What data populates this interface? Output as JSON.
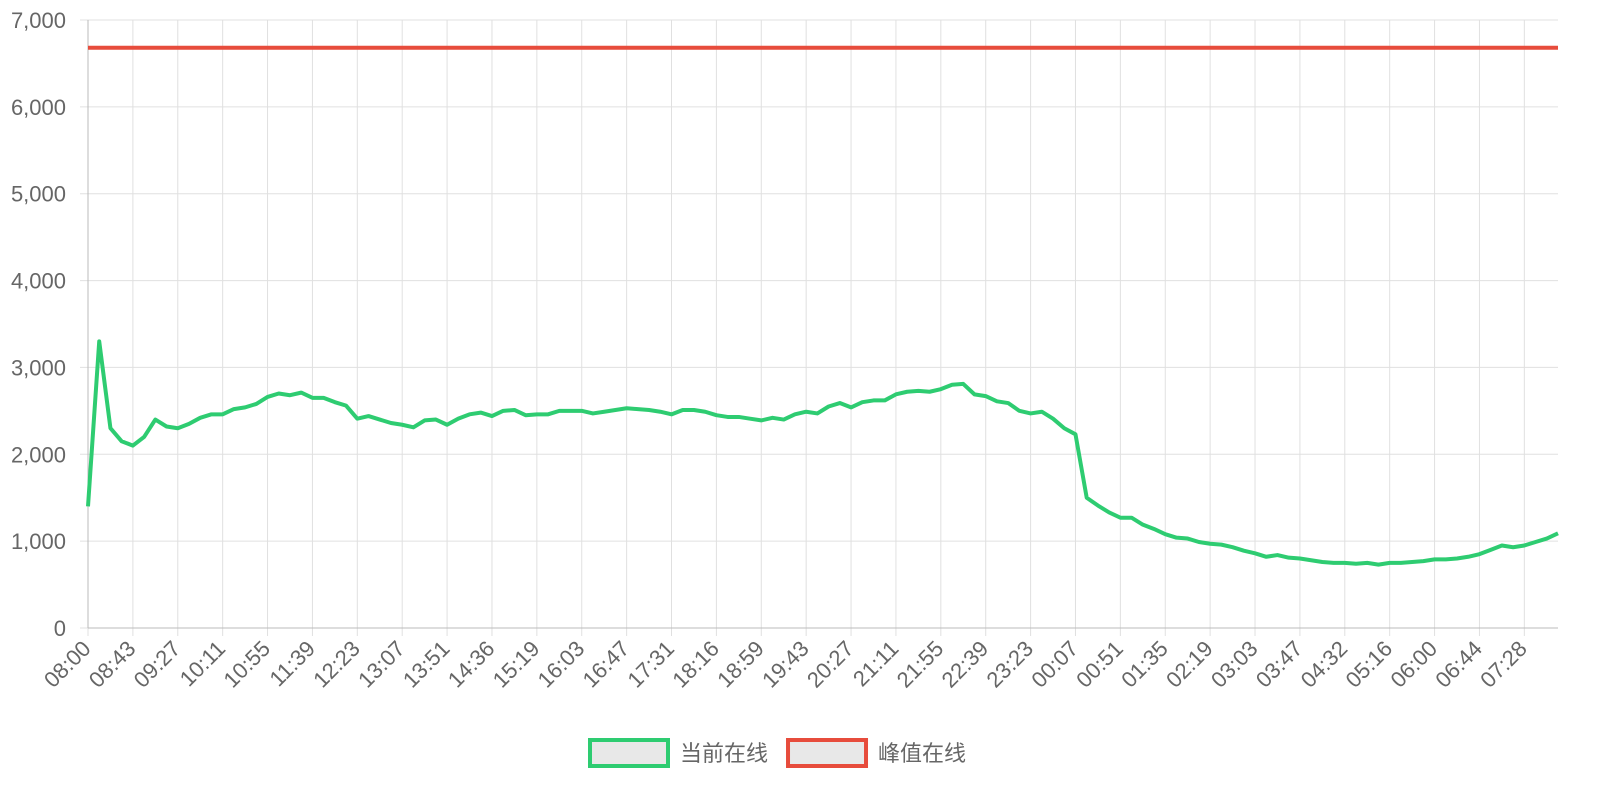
{
  "chart_data": {
    "type": "line",
    "categories": [
      "08:00",
      null,
      null,
      null,
      "08:43",
      null,
      null,
      null,
      "09:27",
      null,
      null,
      null,
      "10:11",
      null,
      null,
      null,
      "10:55",
      null,
      null,
      null,
      "11:39",
      null,
      null,
      null,
      "12:23",
      null,
      null,
      null,
      "13:07",
      null,
      null,
      null,
      "13:51",
      null,
      null,
      null,
      "14:36",
      null,
      null,
      null,
      "15:19",
      null,
      null,
      null,
      "16:03",
      null,
      null,
      null,
      "16:47",
      null,
      null,
      null,
      "17:31",
      null,
      null,
      null,
      "18:16",
      null,
      null,
      null,
      "18:59",
      null,
      null,
      null,
      "19:43",
      null,
      null,
      null,
      "20:27",
      null,
      null,
      null,
      "21:11",
      null,
      null,
      null,
      "21:55",
      null,
      null,
      null,
      "22:39",
      null,
      null,
      null,
      "23:23",
      null,
      null,
      null,
      "00:07",
      null,
      null,
      null,
      "00:51",
      null,
      null,
      null,
      "01:35",
      null,
      null,
      null,
      "02:19",
      null,
      null,
      null,
      "03:03",
      null,
      null,
      null,
      "03:47",
      null,
      null,
      null,
      "04:32",
      null,
      null,
      null,
      "05:16",
      null,
      null,
      null,
      "06:00",
      null,
      null,
      null,
      "06:44",
      null,
      null,
      null,
      "07:28",
      null,
      null,
      null
    ],
    "series": [
      {
        "name": "当前在线",
        "color": "#2ecc71",
        "values": [
          1400,
          3300,
          2300,
          2150,
          2100,
          2200,
          2400,
          2320,
          2300,
          2350,
          2420,
          2460,
          2460,
          2520,
          2540,
          2580,
          2660,
          2700,
          2680,
          2710,
          2650,
          2650,
          2600,
          2560,
          2410,
          2440,
          2400,
          2360,
          2340,
          2310,
          2390,
          2400,
          2340,
          2410,
          2460,
          2480,
          2440,
          2500,
          2510,
          2450,
          2460,
          2460,
          2500,
          2500,
          2500,
          2470,
          2490,
          2510,
          2530,
          2520,
          2510,
          2490,
          2460,
          2510,
          2510,
          2490,
          2450,
          2430,
          2430,
          2410,
          2390,
          2420,
          2400,
          2460,
          2490,
          2470,
          2550,
          2590,
          2540,
          2600,
          2620,
          2620,
          2690,
          2720,
          2730,
          2720,
          2750,
          2800,
          2810,
          2690,
          2670,
          2610,
          2590,
          2500,
          2470,
          2490,
          2410,
          2300,
          2230,
          1500,
          1410,
          1330,
          1270,
          1270,
          1190,
          1140,
          1080,
          1040,
          1030,
          990,
          970,
          960,
          930,
          890,
          860,
          820,
          840,
          810,
          800,
          780,
          760,
          750,
          750,
          740,
          750,
          730,
          750,
          750,
          760,
          770,
          790,
          790,
          800,
          820,
          850,
          900,
          950,
          930,
          950,
          990,
          1030,
          1090
        ]
      },
      {
        "name": "峰值在线",
        "color": "#e74c3c",
        "values": [
          6680,
          6680,
          6680,
          6680,
          6680,
          6680,
          6680,
          6680,
          6680,
          6680,
          6680,
          6680,
          6680,
          6680,
          6680,
          6680,
          6680,
          6680,
          6680,
          6680,
          6680,
          6680,
          6680,
          6680,
          6680,
          6680,
          6680,
          6680,
          6680,
          6680,
          6680,
          6680,
          6680,
          6680,
          6680,
          6680,
          6680,
          6680,
          6680,
          6680,
          6680,
          6680,
          6680,
          6680,
          6680,
          6680,
          6680,
          6680,
          6680,
          6680,
          6680,
          6680,
          6680,
          6680,
          6680,
          6680,
          6680,
          6680,
          6680,
          6680,
          6680,
          6680,
          6680,
          6680,
          6680,
          6680,
          6680,
          6680,
          6680,
          6680,
          6680,
          6680,
          6680,
          6680,
          6680,
          6680,
          6680,
          6680,
          6680,
          6680,
          6680,
          6680,
          6680,
          6680,
          6680,
          6680,
          6680,
          6680,
          6680,
          6680,
          6680,
          6680,
          6680,
          6680,
          6680,
          6680,
          6680,
          6680,
          6680,
          6680,
          6680,
          6680,
          6680,
          6680,
          6680,
          6680,
          6680,
          6680,
          6680,
          6680,
          6680,
          6680,
          6680,
          6680,
          6680,
          6680,
          6680,
          6680,
          6680,
          6680,
          6680,
          6680,
          6680,
          6680,
          6680,
          6680,
          6680,
          6680,
          6680,
          6680,
          6680,
          6680
        ]
      }
    ],
    "ylim": [
      0,
      7000
    ],
    "yticks": [
      0,
      {
        "value": 1000,
        "label": "1,000"
      },
      {
        "value": 2000,
        "label": "2,000"
      },
      {
        "value": 3000,
        "label": "3,000"
      },
      {
        "value": 4000,
        "label": "4,000"
      },
      {
        "value": 5000,
        "label": "5,000"
      },
      {
        "value": 6000,
        "label": "6,000"
      },
      {
        "value": 7000,
        "label": "7,000"
      }
    ],
    "grid": true
  }
}
